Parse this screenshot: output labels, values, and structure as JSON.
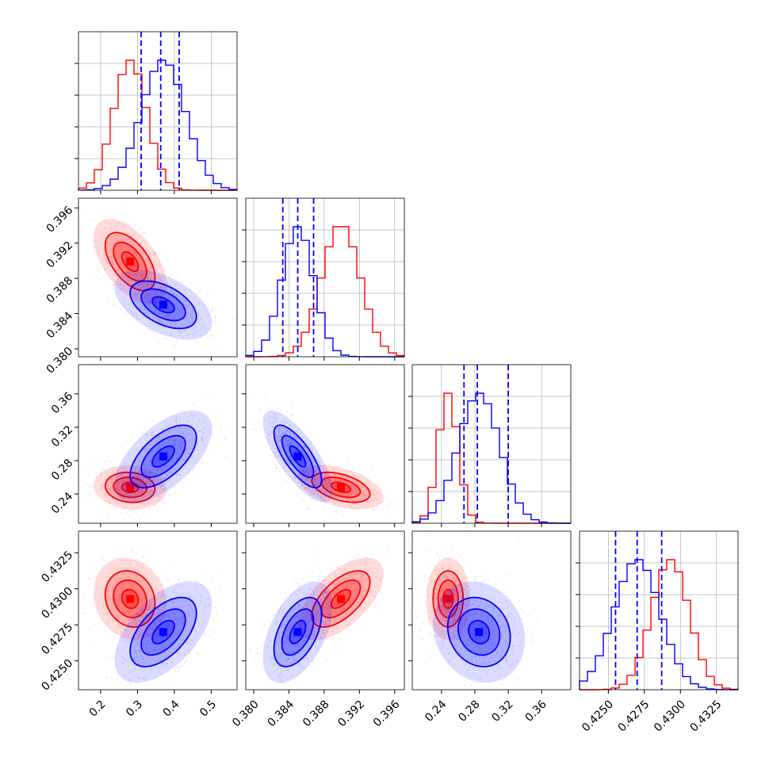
{
  "chart_data": {
    "type": "corner",
    "colors": {
      "red": "#ff0000",
      "blue": "#0000ff"
    },
    "series": [
      {
        "color": "#ff0000",
        "means": [
          0.28,
          0.3899,
          0.248,
          0.4293
        ],
        "stds": [
          0.045,
          0.0022,
          0.012,
          0.0013
        ],
        "correlations": {
          "1_0": -0.55,
          "2_0": -0.1,
          "2_1": -0.45,
          "3_0": -0.15,
          "3_1": 0.6,
          "3_2": 0.0
        }
      },
      {
        "color": "#0000ff",
        "means": [
          0.37,
          0.385,
          0.285,
          0.427
        ],
        "stds": [
          0.06,
          0.0018,
          0.025,
          0.0016
        ],
        "correlations": {
          "1_0": -0.5,
          "2_0": 0.6,
          "2_1": -0.75,
          "3_0": 0.55,
          "3_1": 0.5,
          "3_2": -0.15
        }
      }
    ],
    "quantile_lines": {
      "color": "#0000ff",
      "values": [
        [
          0.31,
          0.363,
          0.413
        ],
        [
          0.3833,
          0.385,
          0.3868
        ],
        [
          0.267,
          0.283,
          0.32
        ],
        [
          0.4255,
          0.427,
          0.4287
        ]
      ]
    },
    "axes": [
      {
        "lim": [
          0.14,
          0.57
        ],
        "ticks": [
          0.2,
          0.3,
          0.4,
          0.5
        ],
        "tick_labels": [
          "0.2",
          "0.3",
          "0.4",
          "0.5"
        ]
      },
      {
        "lim": [
          0.3791,
          0.3971
        ],
        "ticks": [
          0.38,
          0.384,
          0.388,
          0.392,
          0.396
        ],
        "tick_labels": [
          "0.380",
          "0.384",
          "0.388",
          "0.392",
          "0.396"
        ]
      },
      {
        "lim": [
          0.205,
          0.395
        ],
        "ticks": [
          0.24,
          0.28,
          0.32,
          0.36
        ],
        "tick_labels": [
          "0.24",
          "0.28",
          "0.32",
          "0.36"
        ]
      },
      {
        "lim": [
          0.423,
          0.434
        ],
        "ticks": [
          0.425,
          0.4275,
          0.43,
          0.4325
        ],
        "tick_labels": [
          "0.4250",
          "0.4275",
          "0.4300",
          "0.4325"
        ]
      }
    ],
    "grid": true
  }
}
